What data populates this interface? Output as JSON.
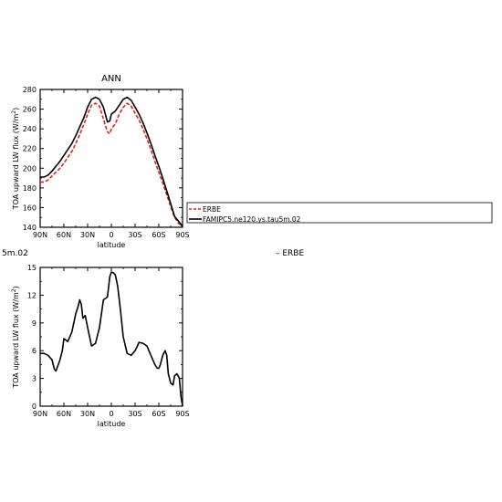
{
  "page_fragments": {
    "left_cut": "5m.02",
    "right_cut": "– ERBE"
  },
  "chart_data": [
    {
      "type": "line",
      "title": "ANN",
      "xlabel": "latitude",
      "ylabel": "TOA upward LW flux (W/m²)",
      "xlim": [
        90,
        -90
      ],
      "ylim": [
        140,
        280
      ],
      "xticks": [
        90,
        60,
        30,
        0,
        -30,
        -60,
        -90
      ],
      "xtick_labels": [
        "90N",
        "60N",
        "30N",
        "0",
        "30S",
        "60S",
        "90S"
      ],
      "yticks": [
        140,
        160,
        180,
        200,
        220,
        240,
        260,
        280
      ],
      "ytick_labels": [
        "140",
        "160",
        "180",
        "200",
        "220",
        "240",
        "260",
        "280"
      ],
      "legend_position": "right",
      "series": [
        {
          "name": "ERBE",
          "color": "#e0211a",
          "dash": "dashed",
          "x": [
            90,
            85,
            80,
            75,
            70,
            65,
            60,
            55,
            50,
            45,
            40,
            35,
            30,
            25,
            20,
            15,
            10,
            5,
            2,
            0,
            -5,
            -10,
            -15,
            -20,
            -25,
            -30,
            -35,
            -40,
            -45,
            -50,
            -55,
            -60,
            -65,
            -70,
            -75,
            -80,
            -85,
            -88,
            -90
          ],
          "y": [
            186,
            186,
            188,
            192,
            196,
            200,
            205,
            211,
            217,
            225,
            234,
            244,
            255,
            264,
            266,
            263,
            250,
            237,
            235,
            240,
            245,
            255,
            262,
            266,
            263,
            256,
            249,
            240,
            230,
            219,
            207,
            196,
            185,
            173,
            161,
            150,
            144,
            142,
            140
          ]
        },
        {
          "name": "FAMIPC5.ne120.ys.tau5m.02",
          "color": "#000000",
          "dash": "solid",
          "x": [
            90,
            85,
            80,
            75,
            70,
            65,
            60,
            55,
            50,
            45,
            40,
            35,
            30,
            25,
            20,
            15,
            10,
            5,
            2,
            0,
            -5,
            -10,
            -15,
            -20,
            -25,
            -30,
            -35,
            -40,
            -45,
            -50,
            -55,
            -60,
            -65,
            -70,
            -75,
            -80,
            -85,
            -88,
            -90
          ],
          "y": [
            191,
            191,
            193,
            197,
            202,
            207,
            213,
            219,
            225,
            233,
            242,
            251,
            262,
            270,
            272,
            270,
            262,
            247,
            248,
            255,
            258,
            264,
            270,
            272,
            269,
            262,
            255,
            246,
            236,
            225,
            213,
            202,
            190,
            177,
            164,
            151,
            146,
            143,
            140
          ]
        }
      ]
    },
    {
      "type": "line",
      "title": "",
      "xlabel": "latitude",
      "ylabel": "TOA upward LW flux (W/m²)",
      "xlim": [
        90,
        -90
      ],
      "ylim": [
        0,
        15
      ],
      "xticks": [
        90,
        60,
        30,
        0,
        -30,
        -60,
        -90
      ],
      "xtick_labels": [
        "90N",
        "60N",
        "30N",
        "0",
        "30S",
        "60S",
        "90S"
      ],
      "yticks": [
        0,
        3,
        6,
        9,
        12,
        15
      ],
      "ytick_labels": [
        "0",
        "3",
        "6",
        "9",
        "12",
        "15"
      ],
      "series": [
        {
          "color": "#000000",
          "dash": "solid",
          "x": [
            90,
            85,
            80,
            77,
            75,
            72,
            70,
            65,
            62,
            60,
            55,
            50,
            45,
            42,
            40,
            38,
            36,
            33,
            30,
            25,
            20,
            18,
            15,
            10,
            5,
            2,
            0,
            -3,
            -5,
            -8,
            -10,
            -12,
            -15,
            -20,
            -25,
            -30,
            -33,
            -35,
            -40,
            -45,
            -50,
            -55,
            -58,
            -60,
            -62,
            -65,
            -68,
            -70,
            -72,
            -75,
            -78,
            -80,
            -83,
            -86,
            -88,
            -90
          ],
          "y": [
            5.7,
            5.7,
            5.5,
            5.2,
            5.0,
            4.0,
            3.8,
            5.0,
            6.0,
            7.3,
            7.0,
            8.0,
            10.0,
            10.8,
            11.5,
            11.0,
            9.5,
            9.8,
            8.5,
            6.5,
            6.8,
            7.5,
            8.5,
            11.5,
            11.8,
            14.0,
            14.5,
            14.4,
            14.2,
            13.0,
            11.5,
            10.0,
            7.5,
            5.7,
            5.5,
            6.0,
            6.5,
            6.9,
            6.8,
            6.5,
            5.5,
            4.5,
            4.1,
            4.1,
            4.5,
            5.5,
            6.0,
            5.5,
            3.5,
            2.5,
            2.3,
            3.3,
            3.5,
            3.0,
            1.0,
            0.0
          ]
        }
      ]
    }
  ]
}
